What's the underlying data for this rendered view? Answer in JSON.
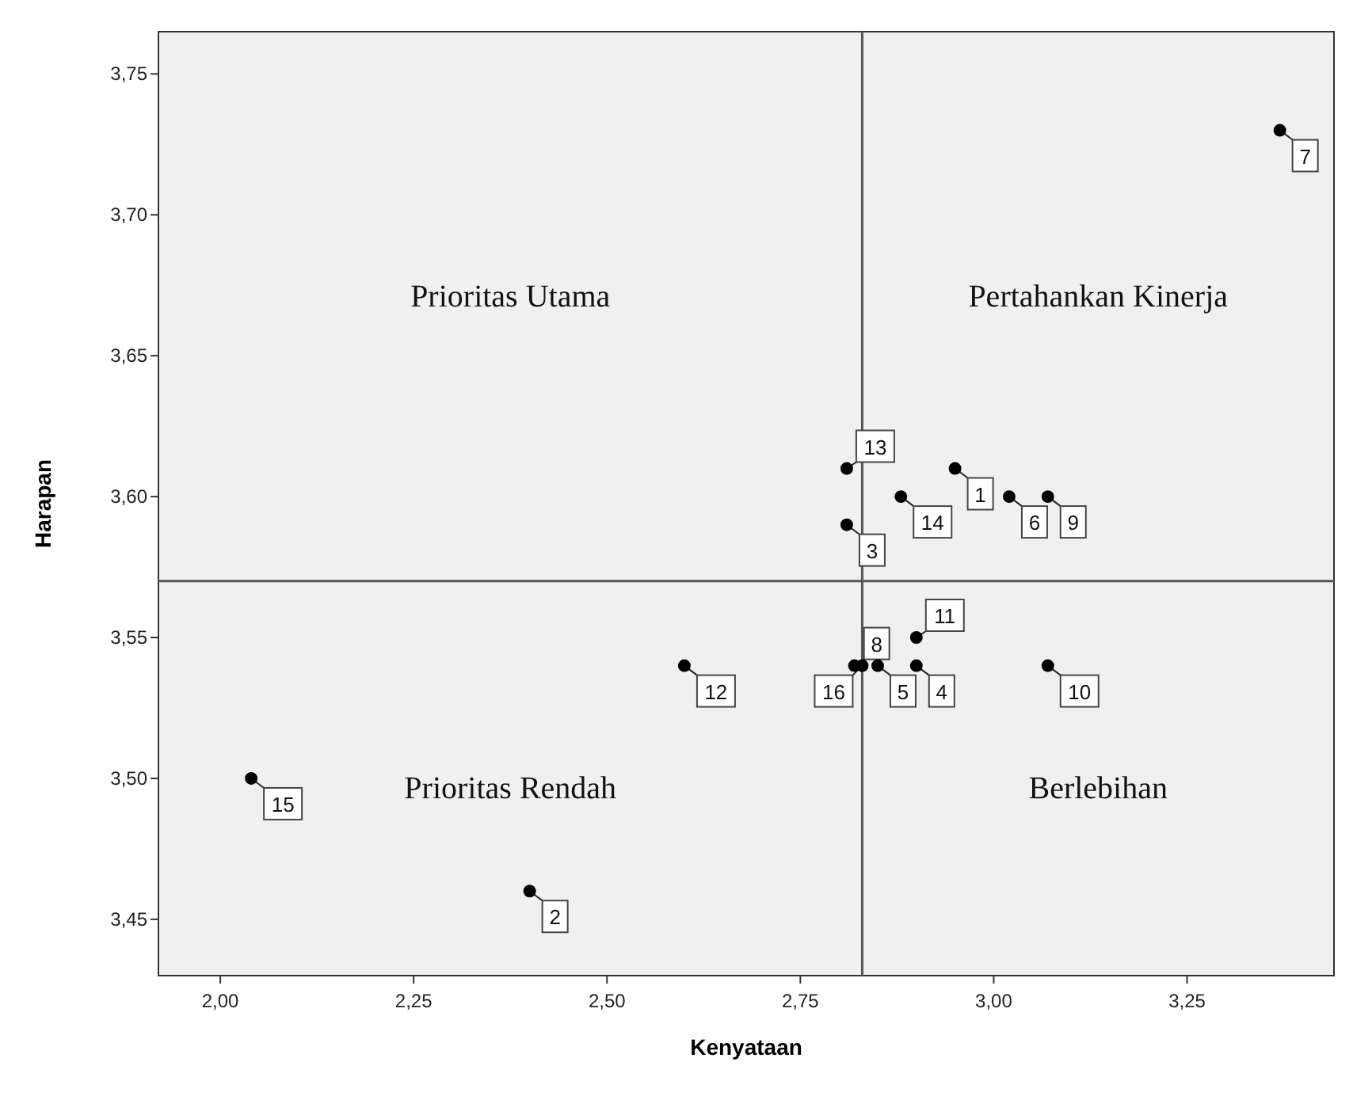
{
  "chart_data": {
    "type": "scatter",
    "xlabel": "Kenyataan",
    "ylabel": "Harapan",
    "x": [
      2.95,
      2.4,
      2.81,
      2.9,
      2.85,
      3.02,
      3.37,
      2.82,
      3.07,
      3.07,
      2.9,
      2.6,
      2.81,
      2.88,
      2.04,
      2.83
    ],
    "values": [
      3.61,
      3.46,
      3.59,
      3.54,
      3.54,
      3.6,
      3.73,
      3.54,
      3.6,
      3.54,
      3.55,
      3.54,
      3.61,
      3.6,
      3.5,
      3.54
    ],
    "color": "#000000",
    "marker": "circle",
    "grid": false,
    "xlim": [
      1.92,
      3.44
    ],
    "xticks": [
      {
        "value": 2,
        "label": "2,00"
      },
      {
        "value": 2.25,
        "label": "2,25"
      },
      {
        "value": 2.5,
        "label": "2,50"
      },
      {
        "value": 2.75,
        "label": "2,75"
      },
      {
        "value": 3,
        "label": "3,00"
      },
      {
        "value": 3.25,
        "label": "3,25"
      }
    ],
    "ylim": [
      3.43,
      3.765
    ],
    "yticks": [
      {
        "value": 3.45,
        "label": "3,45"
      },
      {
        "value": 3.5,
        "label": "3,50"
      },
      {
        "value": 3.55,
        "label": "3,55"
      },
      {
        "value": 3.6,
        "label": "3,60"
      },
      {
        "value": 3.65,
        "label": "3,65"
      },
      {
        "value": 3.7,
        "label": "3,70"
      },
      {
        "value": 3.75,
        "label": "3,75"
      }
    ],
    "ref_lines": [
      {
        "axis": "x",
        "value": 2.83,
        "color": "#555555"
      },
      {
        "axis": "y",
        "value": 3.57,
        "color": "#555555"
      }
    ],
    "annotations": [
      "Prioritas Utama",
      "Pertahankan Kinerja",
      "Prioritas Rendah",
      "Berlebihan",
      {
        "text": "1",
        "x": 2.95,
        "y": 3.61
      },
      {
        "text": "2",
        "x": 2.4,
        "y": 3.46
      },
      {
        "text": "3",
        "x": 2.81,
        "y": 3.59
      },
      {
        "text": "4",
        "x": 2.9,
        "y": 3.54
      },
      {
        "text": "5",
        "x": 2.85,
        "y": 3.54
      },
      {
        "text": "6",
        "x": 3.02,
        "y": 3.6
      },
      {
        "text": "7",
        "x": 3.37,
        "y": 3.73
      },
      {
        "text": "8",
        "x": 2.82,
        "y": 3.54
      },
      {
        "text": "9",
        "x": 3.07,
        "y": 3.6
      },
      {
        "text": "10",
        "x": 3.07,
        "y": 3.54
      },
      {
        "text": "11",
        "x": 2.9,
        "y": 3.55
      },
      {
        "text": "12",
        "x": 2.6,
        "y": 3.54
      },
      {
        "text": "13",
        "x": 2.81,
        "y": 3.61
      },
      {
        "text": "14",
        "x": 2.88,
        "y": 3.6
      },
      {
        "text": "15",
        "x": 2.04,
        "y": 3.5
      },
      {
        "text": "16",
        "x": 2.83,
        "y": 3.54
      }
    ]
  }
}
